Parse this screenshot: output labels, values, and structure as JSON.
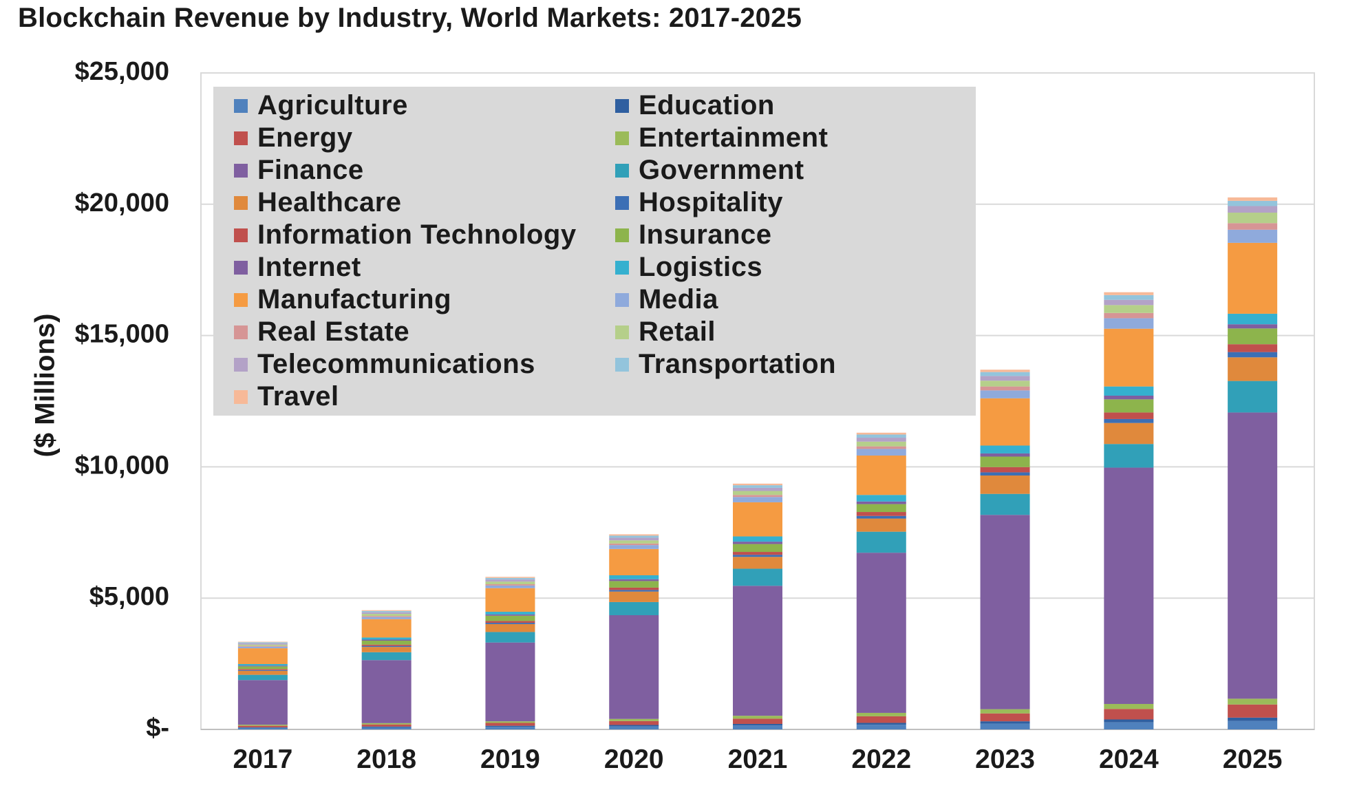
{
  "chart_data": {
    "type": "bar",
    "stacked": true,
    "title": "Blockchain Revenue by Industry, World Markets: 2017-2025",
    "xlabel": "",
    "ylabel": "($ Millions)",
    "ylim": [
      0,
      25000
    ],
    "yticks": [
      0,
      5000,
      10000,
      15000,
      20000,
      25000
    ],
    "ytick_labels": [
      "$-",
      "$5,000",
      "$10,000",
      "$15,000",
      "$20,000",
      "$25,000"
    ],
    "grid": true,
    "legend_position": "top-left",
    "categories": [
      "2017",
      "2018",
      "2019",
      "2020",
      "2021",
      "2022",
      "2023",
      "2024",
      "2025"
    ],
    "series": [
      {
        "name": "Agriculture",
        "color": "#4f81bd",
        "values": [
          60,
          80,
          100,
          120,
          150,
          180,
          220,
          270,
          320
        ]
      },
      {
        "name": "Education",
        "color": "#2f5fa0",
        "values": [
          20,
          30,
          40,
          50,
          60,
          70,
          90,
          110,
          130
        ]
      },
      {
        "name": "Energy",
        "color": "#c0504d",
        "values": [
          60,
          80,
          110,
          150,
          200,
          250,
          300,
          400,
          500
        ]
      },
      {
        "name": "Entertainment",
        "color": "#9bbb59",
        "values": [
          40,
          50,
          60,
          80,
          110,
          130,
          160,
          190,
          220
        ]
      },
      {
        "name": "Finance",
        "color": "#7f5fa0",
        "values": [
          1700,
          2400,
          3000,
          3950,
          4950,
          6100,
          7400,
          9000,
          10900
        ]
      },
      {
        "name": "Government",
        "color": "#31a0b8",
        "values": [
          200,
          300,
          400,
          500,
          650,
          800,
          800,
          900,
          1200
        ]
      },
      {
        "name": "Healthcare",
        "color": "#e0893c",
        "values": [
          150,
          200,
          300,
          400,
          450,
          500,
          700,
          800,
          900
        ]
      },
      {
        "name": "Hospitality",
        "color": "#3c6fb5",
        "values": [
          30,
          40,
          50,
          60,
          80,
          100,
          120,
          150,
          200
        ]
      },
      {
        "name": "Information Technology",
        "color": "#c0504d",
        "values": [
          40,
          50,
          70,
          90,
          110,
          150,
          200,
          250,
          300
        ]
      },
      {
        "name": "Insurance",
        "color": "#8db44c",
        "values": [
          100,
          150,
          200,
          250,
          300,
          300,
          400,
          500,
          600
        ]
      },
      {
        "name": "Internet",
        "color": "#7f5fa0",
        "values": [
          30,
          40,
          50,
          70,
          90,
          100,
          120,
          140,
          160
        ]
      },
      {
        "name": "Logistics",
        "color": "#35b0cf",
        "values": [
          60,
          80,
          100,
          150,
          200,
          250,
          300,
          350,
          400
        ]
      },
      {
        "name": "Manufacturing",
        "color": "#f59b42",
        "values": [
          600,
          700,
          900,
          1000,
          1300,
          1500,
          1800,
          2200,
          2700
        ]
      },
      {
        "name": "Media",
        "color": "#8faadc",
        "values": [
          60,
          80,
          100,
          150,
          200,
          250,
          300,
          400,
          500
        ]
      },
      {
        "name": "Real Estate",
        "color": "#d69595",
        "values": [
          30,
          40,
          50,
          60,
          80,
          100,
          150,
          200,
          250
        ]
      },
      {
        "name": "Retail",
        "color": "#b5cf8a",
        "values": [
          50,
          80,
          100,
          120,
          150,
          180,
          220,
          300,
          400
        ]
      },
      {
        "name": "Telecommunications",
        "color": "#b3a2c7",
        "values": [
          50,
          60,
          80,
          100,
          120,
          150,
          180,
          200,
          250
        ]
      },
      {
        "name": "Transportation",
        "color": "#93c4dc",
        "values": [
          40,
          50,
          60,
          80,
          100,
          120,
          150,
          180,
          200
        ]
      },
      {
        "name": "Travel",
        "color": "#f7b998",
        "values": [
          20,
          30,
          40,
          50,
          60,
          70,
          90,
          110,
          130
        ]
      }
    ]
  }
}
